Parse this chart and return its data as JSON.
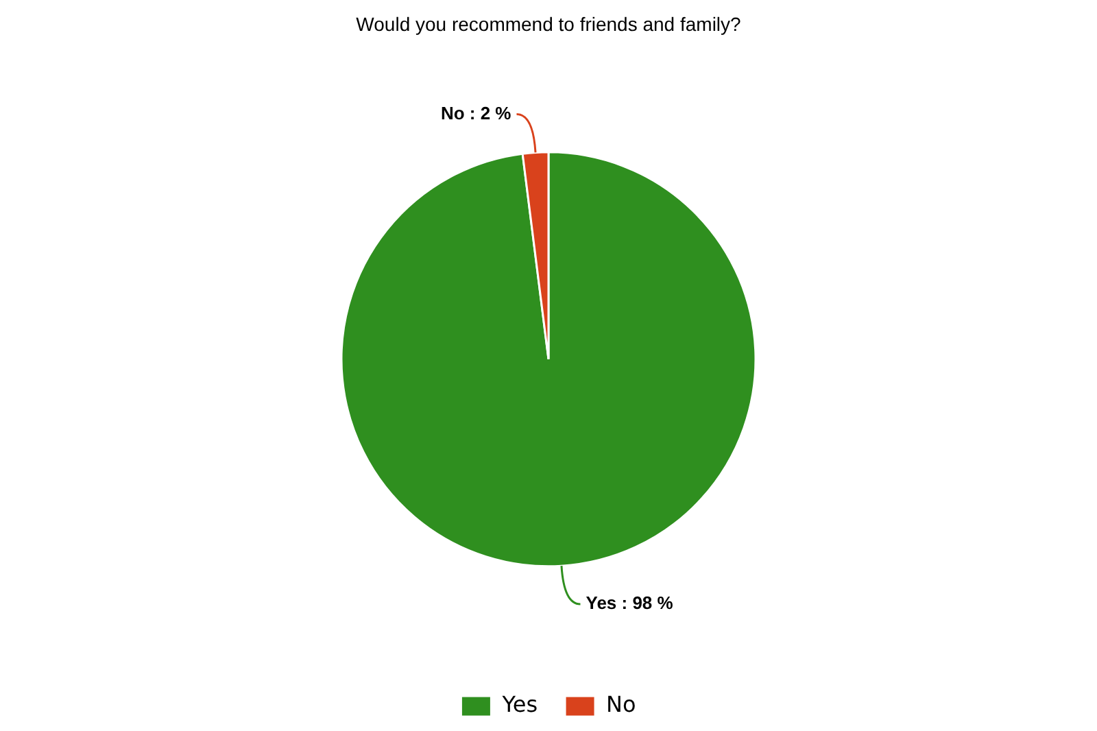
{
  "chart_data": {
    "type": "pie",
    "title": "Would you recommend to friends and family?",
    "categories": [
      "Yes",
      "No"
    ],
    "values": [
      98,
      2
    ],
    "colors": [
      "#2f8f1f",
      "#d9421c"
    ],
    "value_labels": [
      "Yes : 98 %",
      "No : 2 %"
    ],
    "legend": "bottom"
  }
}
